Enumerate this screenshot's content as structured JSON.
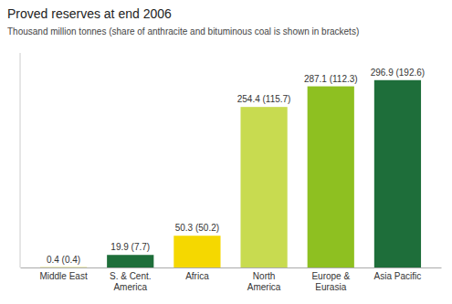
{
  "chart_data": {
    "type": "bar",
    "title": "Proved reserves at end 2006",
    "subtitle": "Thousand million tonnes (share of anthracite and bituminous coal is shown in brackets)",
    "categories": [
      "Middle East",
      "S. & Cent.\nAmerica",
      "Africa",
      "North\nAmerica",
      "Europe &\nEurasia",
      "Asia Pacific"
    ],
    "values": [
      0.4,
      19.9,
      50.3,
      254.4,
      287.1,
      296.9
    ],
    "value_labels": [
      "0.4 (0.4)",
      "19.9 (7.7)",
      "50.3 (50.2)",
      "254.4 (115.7)",
      "287.1 (112.3)",
      "296.9 (192.6)"
    ],
    "colors": [
      "#c8c000",
      "#1e6e3a",
      "#f5d800",
      "#c8db50",
      "#8ec021",
      "#1e6e3a"
    ],
    "ylim": [
      0,
      340
    ],
    "data_labels": true,
    "tick_labels": "x"
  }
}
